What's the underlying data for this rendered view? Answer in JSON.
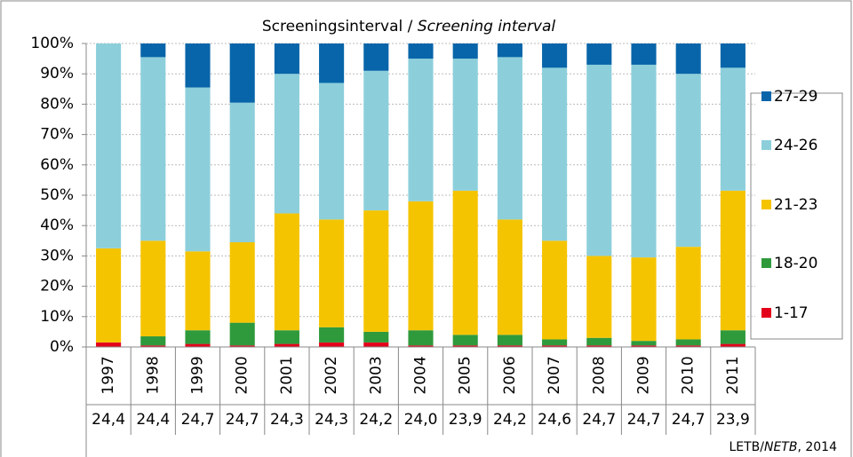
{
  "chart_data": {
    "type": "stacked_bar",
    "title": [
      "Screeningsinterval / ",
      "Screening interval"
    ],
    "categories": [
      "1997",
      "1998",
      "1999",
      "2000",
      "2001",
      "2002",
      "2003",
      "2004",
      "2005",
      "2006",
      "2007",
      "2008",
      "2009",
      "2010",
      "2011"
    ],
    "series": [
      {
        "name": "1-17",
        "color": "#e3001b",
        "values": [
          1.5,
          0.5,
          1,
          0.5,
          1,
          1.5,
          1.5,
          0.5,
          0.5,
          0.5,
          0.5,
          0.5,
          0.5,
          0.5,
          1
        ]
      },
      {
        "name": "18-20",
        "color": "#2e9a3c",
        "values": [
          0,
          3,
          4.5,
          7.5,
          4.5,
          5,
          3.5,
          5,
          3.5,
          3.5,
          2,
          2.5,
          1.5,
          2,
          4.5
        ]
      },
      {
        "name": "21-23",
        "color": "#f5c400",
        "values": [
          31,
          31.5,
          26,
          26.5,
          38.5,
          35.5,
          40,
          42.5,
          47.5,
          38,
          32.5,
          27,
          27.5,
          30.5,
          46
        ]
      },
      {
        "name": "24-26",
        "color": "#8ccfdb",
        "values": [
          67.5,
          60.5,
          54,
          46,
          46,
          45,
          46,
          47,
          43.5,
          53.5,
          57,
          63,
          63.5,
          57,
          40.5
        ]
      },
      {
        "name": "27-29",
        "color": "#0865a9",
        "values": [
          0,
          4.5,
          14.5,
          19.5,
          10,
          13,
          9,
          5,
          5,
          4.5,
          8,
          7,
          7,
          10,
          8
        ]
      }
    ],
    "averages": {
      "values": [
        24.4,
        24.4,
        24.7,
        24.7,
        24.3,
        24.3,
        24.2,
        24.0,
        23.9,
        24.2,
        24.6,
        24.7,
        24.7,
        24.7,
        23.9
      ],
      "value_labels": [
        "24,4",
        "24,4",
        "24,7",
        "24,7",
        "24,3",
        "24,3",
        "24,2",
        "24,0",
        "23,9",
        "24,2",
        "24,6",
        "24,7",
        "24,7",
        "24,7",
        "23,9"
      ]
    },
    "ylim": [
      0,
      100
    ],
    "yticks": [
      {
        "value": 0,
        "label": "0%"
      },
      {
        "value": 10,
        "label": "10%"
      },
      {
        "value": 20,
        "label": "20%"
      },
      {
        "value": 30,
        "label": "30%"
      },
      {
        "value": 40,
        "label": "40%"
      },
      {
        "value": 50,
        "label": "50%"
      },
      {
        "value": 60,
        "label": "60%"
      },
      {
        "value": 70,
        "label": "70%"
      },
      {
        "value": 80,
        "label": "80%"
      },
      {
        "value": 90,
        "label": "90%"
      },
      {
        "value": 100,
        "label": "100%"
      }
    ],
    "grid": true,
    "legend": "right",
    "source": [
      "LETB/",
      "NETB",
      ", 2014"
    ]
  }
}
